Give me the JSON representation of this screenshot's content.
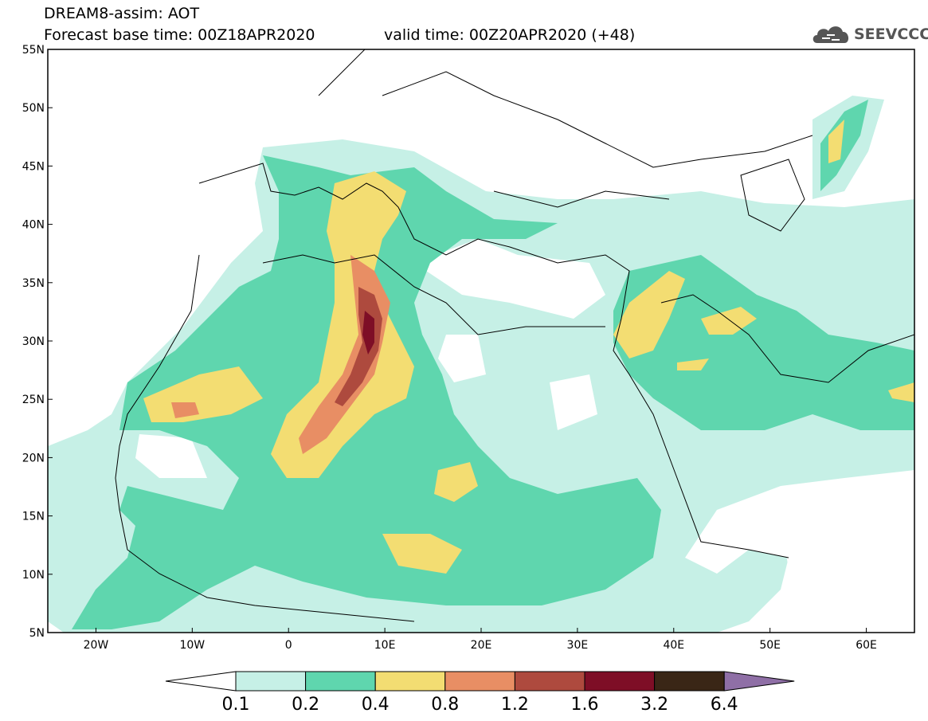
{
  "title": {
    "line1": "DREAM8-assim: AOT",
    "base_time": "Forecast base time: 00Z18APR2020",
    "valid_time": "valid time: 00Z20APR2020 (+48)"
  },
  "logo": {
    "text": "SEEVCCC",
    "icon": "cloud-icon"
  },
  "map": {
    "lon_ticks": [
      "20W",
      "10W",
      "0",
      "10E",
      "20E",
      "30E",
      "40E",
      "50E",
      "60E"
    ],
    "lat_ticks": [
      "55N",
      "50N",
      "45N",
      "40N",
      "35N",
      "30N",
      "25N",
      "20N",
      "15N",
      "10N",
      "5N"
    ],
    "lon_range": [
      -25,
      65
    ],
    "lat_range": [
      5,
      55
    ]
  },
  "colorbar": {
    "labels": [
      "0.1",
      "0.2",
      "0.4",
      "0.8",
      "1.2",
      "1.6",
      "3.2",
      "6.4"
    ],
    "colors": [
      "#c6f0e6",
      "#5fd6ae",
      "#f3dd72",
      "#e88e64",
      "#ae4a3e",
      "#7e0e26",
      "#3a2616",
      "#8f6fa6"
    ]
  }
}
